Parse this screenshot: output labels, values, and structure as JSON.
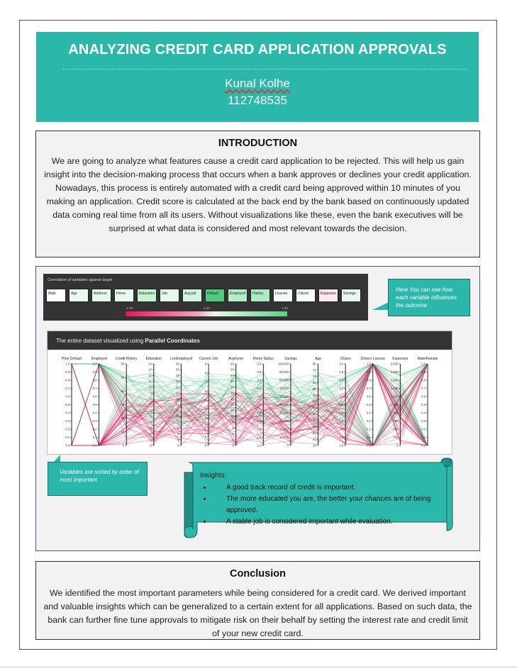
{
  "header": {
    "title": "ANALYZING CREDIT CARD APPLICATION APPROVALS",
    "author": "Kunal Kolhe",
    "student_id": "112748535"
  },
  "intro": {
    "heading": "INTRODUCTION",
    "body": "We are going to analyze what features cause a credit card application to be rejected. This will help us gain insight into the decision-making process that occurs when a bank approves or declines your credit application. Nowadays, this process is entirely automated with a credit card being approved within 10 minutes of you making an application. Credit score is calculated at the back end by the bank based on continuously updated data coming real time from all its users. Without visualizations like these, even the bank executives will be surprised at what data is considered and most relevant towards the decision."
  },
  "correlation": {
    "title": "Correlation of variables against target",
    "variables": [
      {
        "label": "Male",
        "color": "#ffffff"
      },
      {
        "label": "Age",
        "color": "#e9fbef"
      },
      {
        "label": "Address",
        "color": "#e4f9eb"
      },
      {
        "label": "Home",
        "color": "#e9fbef"
      },
      {
        "label": "Education",
        "color": "#c6f2d6"
      },
      {
        "label": "Job",
        "color": "#e4f9eb"
      },
      {
        "label": "Avg job",
        "color": "#d2f5df"
      },
      {
        "label": "Default",
        "color": "#52c97f"
      },
      {
        "label": "Employed",
        "color": "#b3eec8"
      },
      {
        "label": "History",
        "color": "#a9ecc1"
      },
      {
        "label": "License",
        "color": "#f1fcf4"
      },
      {
        "label": "Citizen",
        "color": "#f5fdf7"
      },
      {
        "label": "Expenses",
        "color": "#fde6ee"
      },
      {
        "label": "Savings",
        "color": "#e4f9eb"
      }
    ],
    "legend_min": "-1.00",
    "legend_mid": "0.00",
    "legend_max": "1.00"
  },
  "callout_top": "Here You can see how each variable influences the outcome",
  "parallel": {
    "title_prefix": "The entire dataset visualized using ",
    "title_bold": "Parallel Coordinates",
    "axes": [
      {
        "label": "Prior Default",
        "ticks": [
          "1.0",
          "0.9",
          "0.8",
          "0.7",
          "0.6",
          "0.5",
          "0.4",
          "0.3",
          "0.2",
          "0.1",
          "0.0"
        ]
      },
      {
        "label": "Employed",
        "ticks": [
          "1.0",
          "0.9",
          "0.8",
          "0.7",
          "0.6",
          "0.5",
          "0.4",
          "0.3",
          "0.2",
          "0.1",
          "0.0"
        ]
      },
      {
        "label": "Credit History",
        "ticks": [
          "60",
          "50",
          "40",
          "30",
          "20",
          "10",
          "0"
        ]
      },
      {
        "label": "Education",
        "ticks": [
          "14",
          "13",
          "12",
          "11",
          "10",
          "9",
          "8",
          "7",
          "6",
          "5",
          "4",
          "3",
          "2",
          "1",
          "0"
        ]
      },
      {
        "label": "LenEmployed",
        "ticks": [
          "28",
          "26",
          "24",
          "22",
          "20",
          "18",
          "16",
          "14",
          "12",
          "10",
          "8",
          "6",
          "4",
          "2",
          "0"
        ]
      },
      {
        "label": "Current Job",
        "ticks": [
          "9",
          "8",
          "7",
          "6",
          "5",
          "4",
          "3",
          "2",
          "1",
          "0"
        ]
      },
      {
        "label": "Avghome",
        "ticks": [
          "28",
          "26",
          "24",
          "22",
          "20",
          "18",
          "16",
          "14",
          "12",
          "10",
          "8",
          "6",
          "4",
          "2",
          "0"
        ]
      },
      {
        "label": "Home Status",
        "ticks": [
          "3.0",
          "2.8",
          "2.6",
          "2.4",
          "2.2",
          "2.0",
          "1.8",
          "1.6",
          "1.4",
          "1.2",
          "1.0"
        ]
      },
      {
        "label": "Savings",
        "ticks": [
          "100,000",
          "90,000",
          "80,000",
          "70,000",
          "60,000",
          "50,000",
          "40,000",
          "30,000",
          "20,000",
          "10,000",
          "0"
        ]
      },
      {
        "label": "Age",
        "ticks": [
          "80",
          "75",
          "70",
          "65",
          "60",
          "55",
          "50",
          "45",
          "40",
          "35",
          "30",
          "25",
          "20",
          "15"
        ]
      },
      {
        "label": "Citizen",
        "ticks": [
          "3.0",
          "2.8",
          "2.6",
          "2.4",
          "2.2",
          "2.0",
          "1.8",
          "1.6",
          "1.4",
          "1.2",
          "1.0"
        ]
      },
      {
        "label": "Drivers License",
        "ticks": [
          "1.0",
          "0.9",
          "0.8",
          "0.7",
          "0.6",
          "0.5",
          "0.4",
          "0.3",
          "0.2",
          "0.1",
          "0.0"
        ]
      },
      {
        "label": "Expenses",
        "ticks": [
          "2,000",
          "1,800",
          "1,600",
          "1,400",
          "1,200",
          "1,000",
          "800",
          "600",
          "400",
          "200",
          "0"
        ]
      },
      {
        "label": "Male/Female",
        "ticks": [
          "1.0",
          "0.9",
          "0.8",
          "0.7",
          "0.6",
          "0.5",
          "0.4",
          "0.3",
          "0.2",
          "0.1",
          "0.0"
        ]
      }
    ],
    "colors": {
      "approved": "#3cba78",
      "rejected": "#e0185e"
    }
  },
  "callout_bottom": "Variables are sorted by order of most important",
  "insights": {
    "label": "Insights:",
    "items": [
      "A good track record of credit is important.",
      "The more educated you are, the better your chances are of being approved.",
      "A stable job is considered important while evaluation."
    ]
  },
  "conclusion": {
    "heading": "Conclusion",
    "body": "We identified the most important parameters while being considered for a credit card. We derived important and valuable insights which can be generalized to a certain extent for all applications. Based on such data, the bank can further fine tune approvals to mitigate risk on their behalf by setting the interest rate and credit limit of your new credit card."
  },
  "colors": {
    "accent": "#2bb8aa"
  }
}
